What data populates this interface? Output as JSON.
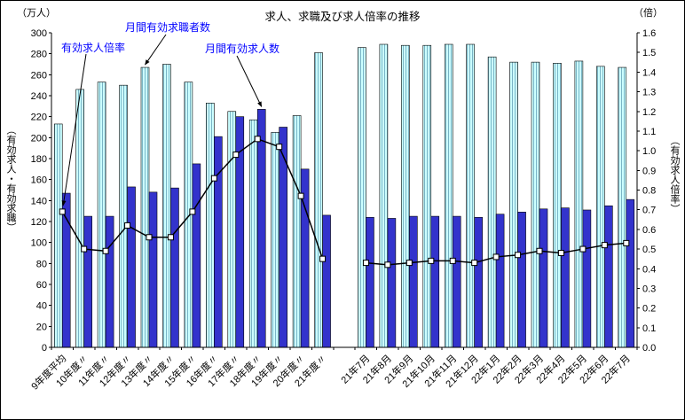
{
  "title": "求人、求職及び求人倍率の推移",
  "left_axis_unit": "（万人）",
  "right_axis_unit": "（倍）",
  "left_axis_title": "（有効求人・有効求職）",
  "right_axis_title": "（有効求人倍率）",
  "annotations": {
    "ratio_label": "有効求人倍率",
    "seekers_label": "月間有効求職者数",
    "openings_label": "月間有効求人数"
  },
  "chart_data": {
    "type": "bar",
    "title": "求人、求職及び求人倍率の推移",
    "legend_position": "none",
    "grid": false,
    "categories": [
      "9年度平均",
      "10年度〃",
      "11年度〃",
      "12年度〃",
      "13年度〃",
      "14年度〃",
      "15年度〃",
      "16年度〃",
      "17年度〃",
      "18年度〃",
      "19年度〃",
      "20年度〃",
      "21年度〃",
      "",
      "21年7月",
      "21年8月",
      "21年9月",
      "21年10月",
      "21年11月",
      "21年12月",
      "22年1月",
      "22年2月",
      "22年3月",
      "22年4月",
      "22年5月",
      "22年6月",
      "22年7月"
    ],
    "left_axis": {
      "label": "（万人）",
      "min": 0,
      "max": 300,
      "ticks": [
        0,
        20,
        40,
        60,
        80,
        100,
        120,
        140,
        160,
        180,
        200,
        220,
        240,
        260,
        280,
        300
      ]
    },
    "right_axis": {
      "label": "（倍）",
      "min": 0,
      "max": 1.6,
      "ticks": [
        "0.0",
        "0.1",
        "0.2",
        "0.3",
        "0.4",
        "0.5",
        "0.6",
        "0.7",
        "0.8",
        "0.9",
        "1.0",
        "1.1",
        "1.2",
        "1.3",
        "1.4",
        "1.5",
        "1.6"
      ]
    },
    "series": [
      {
        "name": "月間有効求職者数",
        "type": "bar",
        "axis": "left",
        "color": "#ccffff",
        "values": [
          213,
          246,
          253,
          250,
          267,
          270,
          253,
          233,
          225,
          217,
          205,
          221,
          281,
          null,
          286,
          289,
          288,
          288,
          289,
          289,
          277,
          272,
          272,
          271,
          273,
          268,
          267
        ]
      },
      {
        "name": "月間有効求人数",
        "type": "bar",
        "axis": "left",
        "color": "#3333cc",
        "values": [
          147,
          125,
          125,
          153,
          148,
          152,
          175,
          201,
          220,
          227,
          210,
          170,
          126,
          null,
          124,
          123,
          125,
          125,
          125,
          124,
          127,
          129,
          132,
          133,
          131,
          135,
          141
        ]
      },
      {
        "name": "有効求人倍率",
        "type": "line",
        "axis": "right",
        "color": "#000000",
        "marker": "white-square",
        "values": [
          0.69,
          0.5,
          0.49,
          0.62,
          0.56,
          0.56,
          0.69,
          0.86,
          0.98,
          1.06,
          1.02,
          0.77,
          0.45,
          null,
          0.43,
          0.42,
          0.43,
          0.44,
          0.44,
          0.43,
          0.46,
          0.47,
          0.49,
          0.48,
          0.5,
          0.52,
          0.53
        ]
      }
    ]
  }
}
